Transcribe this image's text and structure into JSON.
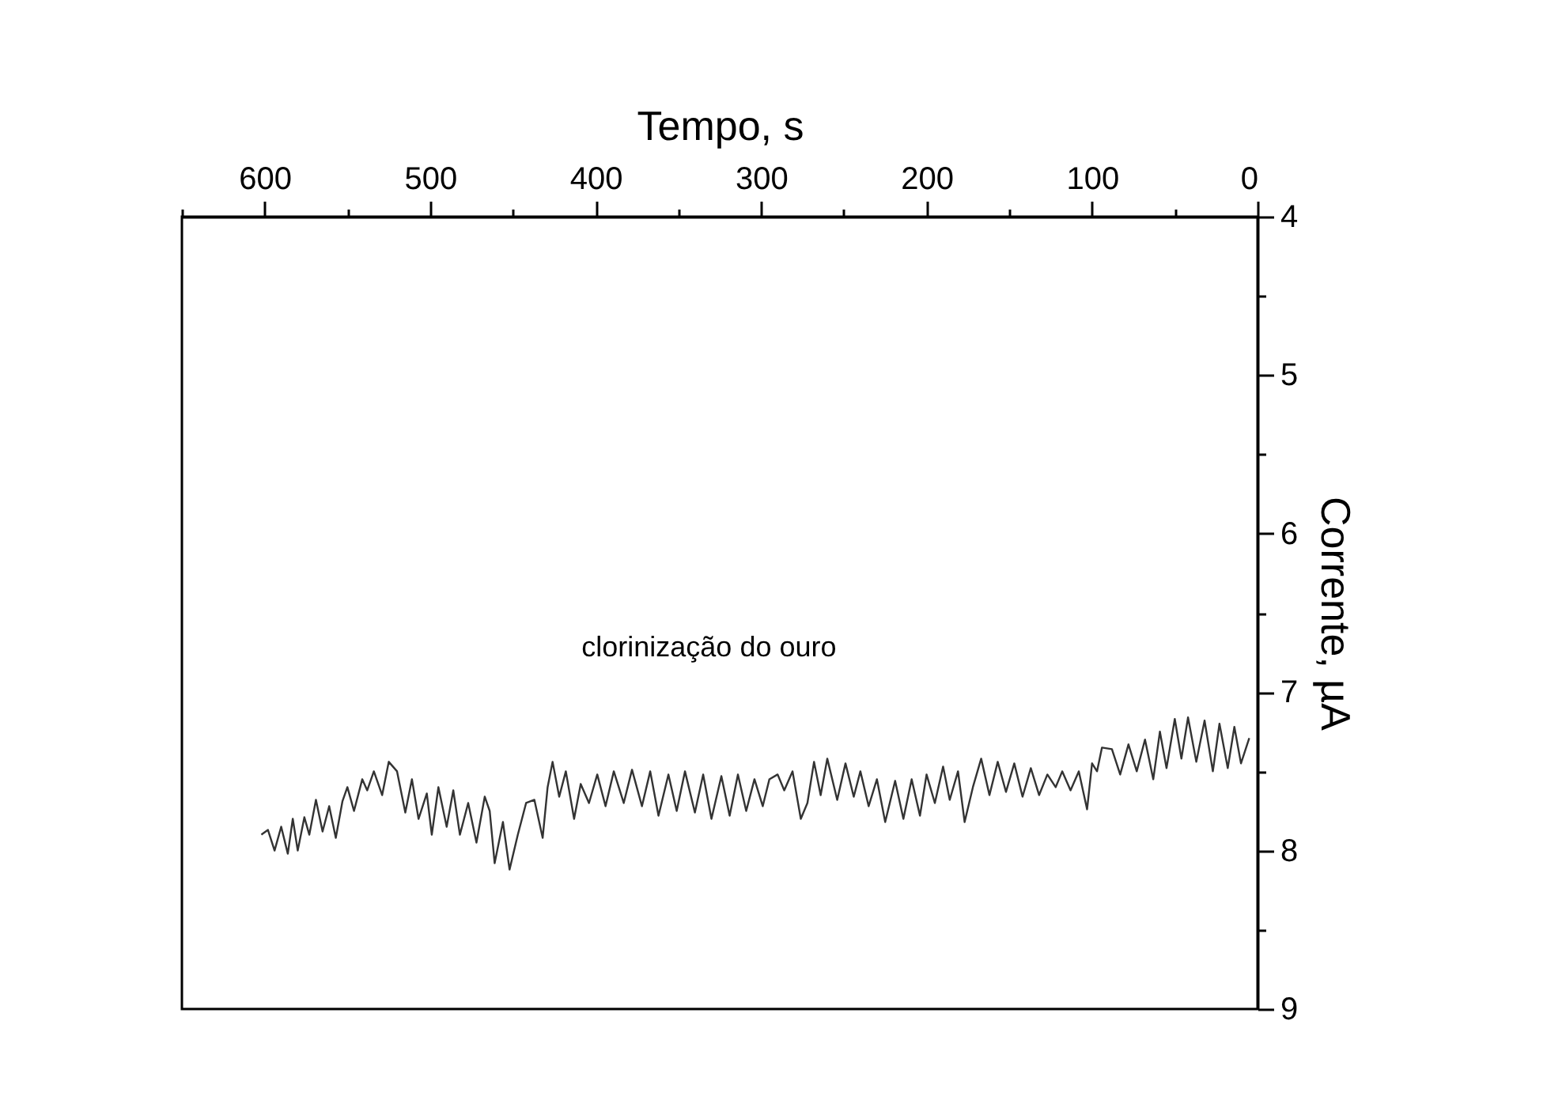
{
  "chart_data": {
    "type": "line",
    "xlabel": "Tempo, s",
    "ylabel": "Corrente, µA",
    "xlim": [
      650,
      0
    ],
    "ylim": [
      9,
      4
    ],
    "xticks": [
      0,
      {
        "value": 50,
        "label": null
      },
      100,
      {
        "value": 150,
        "label": null
      },
      200,
      {
        "value": 250,
        "label": null
      },
      300,
      {
        "value": 350,
        "label": null
      },
      400,
      {
        "value": 450,
        "label": null
      },
      500,
      {
        "value": 550,
        "label": null
      },
      600,
      {
        "value": 650,
        "label": null
      }
    ],
    "yticks": [
      4,
      {
        "value": 4.5,
        "label": null
      },
      5,
      {
        "value": 5.5,
        "label": null
      },
      6,
      {
        "value": 6.5,
        "label": null
      },
      7,
      {
        "value": 7.5,
        "label": null
      },
      8,
      {
        "value": 8.5,
        "label": null
      },
      9
    ],
    "grid": false,
    "legend": false,
    "marker": "none",
    "line_style": "solid",
    "annotations": [
      "clorinização do ouro"
    ],
    "series": [
      {
        "color": "#333333",
        "x": [
          5,
          10,
          14,
          18,
          23,
          27,
          32,
          37,
          42,
          46,
          50,
          55,
          59,
          63,
          68,
          73,
          78,
          83,
          88,
          94,
          97,
          100,
          103,
          108,
          113,
          118,
          122,
          127,
          132,
          137,
          142,
          147,
          152,
          157,
          162,
          167,
          172,
          177,
          181,
          186,
          190,
          195,
          200,
          204,
          209,
          214,
          219,
          225,
          230,
          235,
          240,
          244,
          249,
          254,
          260,
          264,
          268,
          272,
          276,
          281,
          286,
          290,
          295,
          299,
          304,
          309,
          314,
          319,
          324,
          330,
          335,
          340,
          346,
          351,
          356,
          362,
          367,
          372,
          378,
          383,
          389,
          394,
          399,
          404,
          409,
          413,
          418,
          422,
          426,
          429,
          432,
          437,
          442,
          447,
          452,
          456,
          461,
          464,
          467,
          472,
          477,
          482,
          486,
          490,
          495,
          499,
          502,
          507,
          511,
          515,
          520,
          525,
          529,
          534,
          538,
          541,
          546,
          550,
          553,
          557,
          561,
          565,
          569,
          573,
          576,
          580,
          583,
          586,
          590,
          594,
          598,
          602
        ],
        "values": [
          7.29,
          7.45,
          7.22,
          7.48,
          7.2,
          7.5,
          7.18,
          7.44,
          7.16,
          7.42,
          7.17,
          7.48,
          7.25,
          7.55,
          7.3,
          7.5,
          7.33,
          7.52,
          7.36,
          7.35,
          7.5,
          7.45,
          7.74,
          7.5,
          7.62,
          7.5,
          7.6,
          7.52,
          7.65,
          7.48,
          7.66,
          7.45,
          7.63,
          7.44,
          7.65,
          7.42,
          7.6,
          7.82,
          7.5,
          7.68,
          7.47,
          7.7,
          7.52,
          7.78,
          7.55,
          7.8,
          7.56,
          7.82,
          7.55,
          7.72,
          7.5,
          7.66,
          7.45,
          7.68,
          7.42,
          7.65,
          7.44,
          7.7,
          7.8,
          7.5,
          7.62,
          7.52,
          7.55,
          7.72,
          7.55,
          7.75,
          7.52,
          7.78,
          7.53,
          7.8,
          7.52,
          7.76,
          7.5,
          7.75,
          7.52,
          7.78,
          7.5,
          7.72,
          7.49,
          7.7,
          7.5,
          7.72,
          7.52,
          7.7,
          7.58,
          7.8,
          7.5,
          7.66,
          7.44,
          7.6,
          7.92,
          7.68,
          7.7,
          7.9,
          8.12,
          7.82,
          8.08,
          7.75,
          7.66,
          7.95,
          7.7,
          7.9,
          7.62,
          7.85,
          7.6,
          7.9,
          7.64,
          7.8,
          7.55,
          7.76,
          7.5,
          7.44,
          7.65,
          7.5,
          7.62,
          7.55,
          7.75,
          7.6,
          7.69,
          7.92,
          7.72,
          7.88,
          7.68,
          7.9,
          7.79,
          8.0,
          7.8,
          8.02,
          7.85,
          8.0,
          7.87,
          7.9
        ]
      }
    ]
  }
}
